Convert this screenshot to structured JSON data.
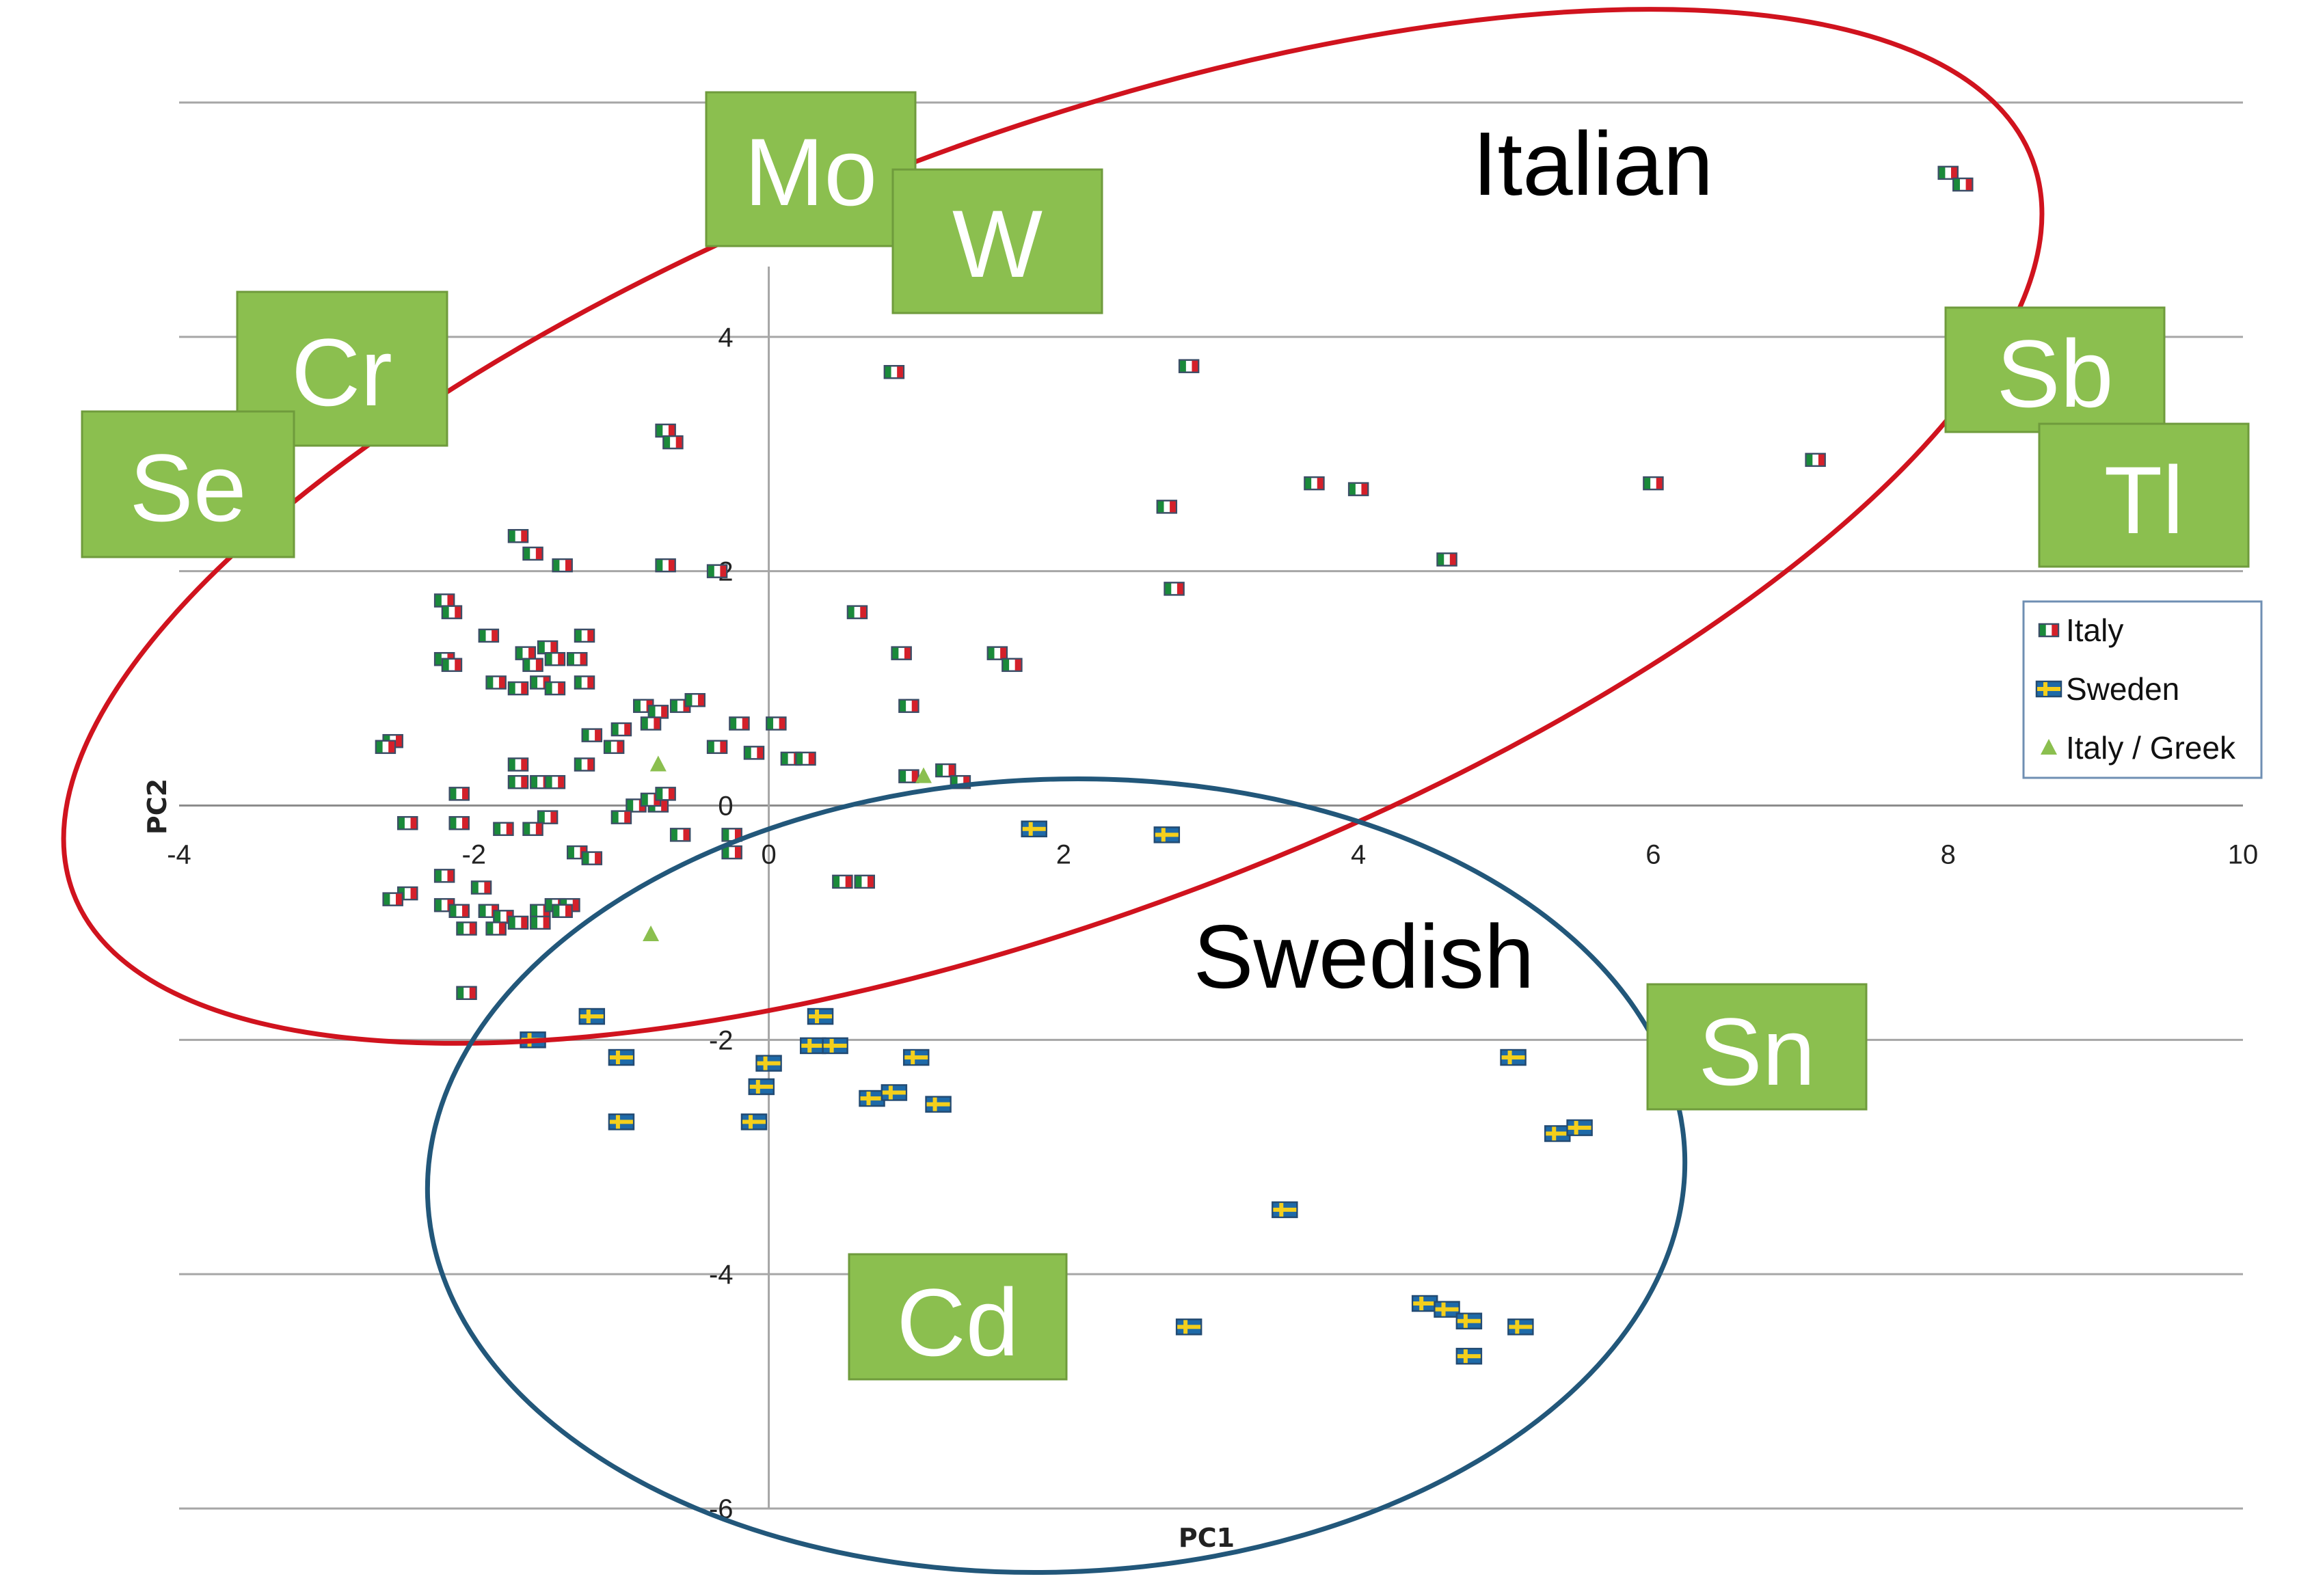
{
  "chart_data": {
    "type": "scatter",
    "title": "",
    "xlabel": "PC1",
    "ylabel": "PC2",
    "xlim": [
      -4,
      10
    ],
    "ylim": [
      -6,
      6
    ],
    "x_ticks": [
      "-4",
      "-2",
      "0",
      "2",
      "4",
      "6",
      "8",
      "10"
    ],
    "y_ticks": [
      "-6",
      "-4",
      "-2",
      "0",
      "2",
      "4"
    ],
    "grid": "horizontal",
    "legend_position": "right",
    "series": [
      {
        "name": "Italy",
        "color": "#c0392b",
        "marker": "italy-flag",
        "points": [
          [
            8.0,
            5.4
          ],
          [
            8.1,
            5.3
          ],
          [
            2.85,
            3.75
          ],
          [
            0.85,
            3.7
          ],
          [
            -0.7,
            3.2
          ],
          [
            -0.65,
            3.1
          ],
          [
            3.7,
            2.75
          ],
          [
            4.0,
            2.7
          ],
          [
            6.0,
            2.75
          ],
          [
            7.1,
            2.95
          ],
          [
            2.7,
            2.55
          ],
          [
            -1.7,
            2.3
          ],
          [
            -1.6,
            2.15
          ],
          [
            -1.4,
            2.05
          ],
          [
            -0.7,
            2.05
          ],
          [
            -0.35,
            2.0
          ],
          [
            4.6,
            2.1
          ],
          [
            2.75,
            1.85
          ],
          [
            -2.2,
            1.75
          ],
          [
            -2.15,
            1.65
          ],
          [
            0.6,
            1.65
          ],
          [
            -1.9,
            1.45
          ],
          [
            -1.25,
            1.45
          ],
          [
            -2.2,
            1.25
          ],
          [
            -2.15,
            1.2
          ],
          [
            -1.65,
            1.3
          ],
          [
            -1.5,
            1.35
          ],
          [
            -1.3,
            1.25
          ],
          [
            -1.45,
            1.25
          ],
          [
            -1.6,
            1.2
          ],
          [
            -1.7,
            1.0
          ],
          [
            -1.55,
            1.05
          ],
          [
            -1.85,
            1.05
          ],
          [
            -1.45,
            1.0
          ],
          [
            -1.25,
            1.05
          ],
          [
            -0.85,
            0.85
          ],
          [
            -0.75,
            0.8
          ],
          [
            -0.6,
            0.85
          ],
          [
            -0.5,
            0.9
          ],
          [
            0.9,
            1.3
          ],
          [
            1.55,
            1.3
          ],
          [
            1.65,
            1.2
          ],
          [
            0.95,
            0.85
          ],
          [
            -1.0,
            0.65
          ],
          [
            -0.8,
            0.7
          ],
          [
            -1.2,
            0.6
          ],
          [
            -0.2,
            0.7
          ],
          [
            0.05,
            0.7
          ],
          [
            -2.55,
            0.55
          ],
          [
            -2.6,
            0.5
          ],
          [
            -0.35,
            0.5
          ],
          [
            -1.05,
            0.5
          ],
          [
            -1.7,
            0.35
          ],
          [
            -1.25,
            0.35
          ],
          [
            -1.55,
            0.2
          ],
          [
            -1.7,
            0.2
          ],
          [
            -1.45,
            0.2
          ],
          [
            -0.1,
            0.45
          ],
          [
            0.15,
            0.4
          ],
          [
            0.25,
            0.4
          ],
          [
            0.95,
            0.25
          ],
          [
            1.2,
            0.3
          ],
          [
            1.3,
            0.2
          ],
          [
            -2.1,
            0.1
          ],
          [
            -0.75,
            0.0
          ],
          [
            -0.9,
            0.0
          ],
          [
            -0.8,
            0.05
          ],
          [
            -0.7,
            0.1
          ],
          [
            -1.5,
            -0.1
          ],
          [
            -1.0,
            -0.1
          ],
          [
            -2.45,
            -0.15
          ],
          [
            -2.1,
            -0.15
          ],
          [
            -0.6,
            -0.25
          ],
          [
            -0.25,
            -0.25
          ],
          [
            -1.6,
            -0.2
          ],
          [
            -1.8,
            -0.2
          ],
          [
            -1.3,
            -0.4
          ],
          [
            -1.2,
            -0.45
          ],
          [
            -0.25,
            -0.4
          ],
          [
            0.5,
            -0.65
          ],
          [
            0.65,
            -0.65
          ],
          [
            -2.2,
            -0.6
          ],
          [
            -2.45,
            -0.75
          ],
          [
            -2.55,
            -0.8
          ],
          [
            -2.2,
            -0.85
          ],
          [
            -1.95,
            -0.7
          ],
          [
            -2.1,
            -0.9
          ],
          [
            -1.9,
            -0.9
          ],
          [
            -1.8,
            -0.95
          ],
          [
            -1.55,
            -0.9
          ],
          [
            -1.45,
            -0.85
          ],
          [
            -1.35,
            -0.85
          ],
          [
            -1.4,
            -0.9
          ],
          [
            -2.05,
            -1.05
          ],
          [
            -1.85,
            -1.05
          ],
          [
            -1.7,
            -1.0
          ],
          [
            -1.55,
            -1.0
          ],
          [
            -2.05,
            -1.6
          ]
        ]
      },
      {
        "name": "Sweden",
        "color": "#f1c40f",
        "marker": "sweden-flag",
        "points": [
          [
            1.8,
            -0.2
          ],
          [
            2.7,
            -0.25
          ],
          [
            -1.2,
            -1.8
          ],
          [
            0.35,
            -1.8
          ],
          [
            -1.6,
            -2.0
          ],
          [
            -1.0,
            -2.15
          ],
          [
            0.0,
            -2.2
          ],
          [
            0.3,
            -2.05
          ],
          [
            0.45,
            -2.05
          ],
          [
            1.0,
            -2.15
          ],
          [
            -0.05,
            -2.4
          ],
          [
            0.7,
            -2.5
          ],
          [
            0.85,
            -2.45
          ],
          [
            1.15,
            -2.55
          ],
          [
            -1.0,
            -2.7
          ],
          [
            -0.1,
            -2.7
          ],
          [
            5.05,
            -2.15
          ],
          [
            5.35,
            -2.8
          ],
          [
            5.5,
            -2.75
          ],
          [
            3.5,
            -3.45
          ],
          [
            2.85,
            -4.45
          ],
          [
            4.45,
            -4.25
          ],
          [
            4.6,
            -4.3
          ],
          [
            4.75,
            -4.4
          ],
          [
            5.1,
            -4.45
          ],
          [
            4.75,
            -4.7
          ]
        ]
      },
      {
        "name": "Italy / Greek",
        "color": "#8bbf4f",
        "marker": "triangle",
        "points": [
          [
            -0.75,
            0.35
          ],
          [
            1.05,
            0.25
          ],
          [
            -0.8,
            -1.1
          ]
        ]
      }
    ],
    "annotations": {
      "clusters": [
        {
          "label": "Italian",
          "color": "#d0131e"
        },
        {
          "label": "Swedish",
          "color": "#22577a"
        }
      ],
      "elements": [
        "Mo",
        "W",
        "Cr",
        "Se",
        "Sb",
        "Tl",
        "Sn",
        "Cd"
      ]
    }
  }
}
